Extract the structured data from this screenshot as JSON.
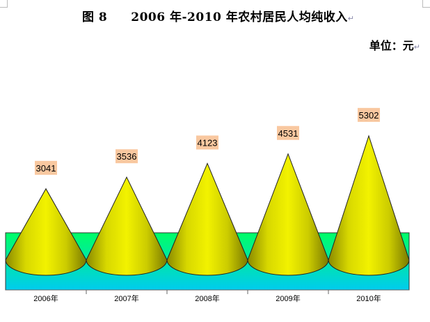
{
  "header": {
    "figure_label": "图 8",
    "title": "2006 年-2010 年农村居民人均纯收入",
    "title_mark": "↵",
    "unit": "单位：元",
    "unit_mark": "↵"
  },
  "colors": {
    "cone_fill": "#e8e800",
    "cone_shade": "#8a8a00",
    "label_bg": "#f9c8a0",
    "floor_top": "#00ff66",
    "floor_bottom": "#00ccee"
  },
  "chart_data": {
    "type": "bar",
    "shape": "cone",
    "title": "2006 年-2010 年农村居民人均纯收入",
    "categories": [
      "2006年",
      "2007年",
      "2008年",
      "2009年",
      "2010年"
    ],
    "values": [
      3041,
      3536,
      4123,
      4531,
      5302
    ],
    "unit": "元",
    "legend": "none",
    "grid": false
  }
}
